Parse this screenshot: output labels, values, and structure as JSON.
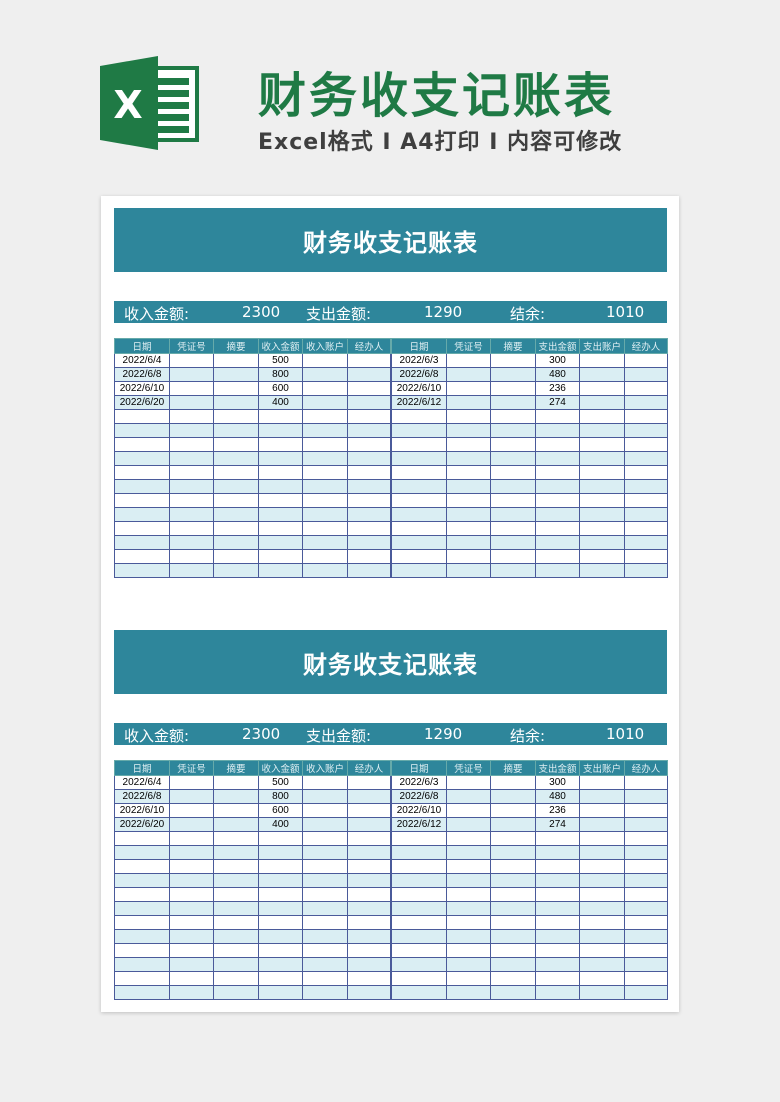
{
  "header": {
    "title": "财务收支记账表",
    "subtitle": "Excel格式 I A4打印 I 内容可修改",
    "logo_icon": "excel-logo-icon"
  },
  "colors": {
    "accent": "#2e869b",
    "title_green": "#1f7a45",
    "row_alt": "#daeef3"
  },
  "sheets": [
    {
      "title": "财务收支记账表",
      "summary": {
        "income_label": "收入金额:",
        "income": "2300",
        "expense_label": "支出金额:",
        "expense": "1290",
        "balance_label": "结余:",
        "balance": "1010"
      },
      "income": {
        "columns": [
          "日期",
          "凭证号",
          "摘要",
          "收入金额",
          "收入账户",
          "经办人"
        ],
        "rows": [
          [
            "2022/6/4",
            "",
            "",
            "500",
            "",
            ""
          ],
          [
            "2022/6/8",
            "",
            "",
            "800",
            "",
            ""
          ],
          [
            "2022/6/10",
            "",
            "",
            "600",
            "",
            ""
          ],
          [
            "2022/6/20",
            "",
            "",
            "400",
            "",
            ""
          ]
        ]
      },
      "expense": {
        "columns": [
          "日期",
          "凭证号",
          "摘要",
          "支出金额",
          "支出账户",
          "经办人"
        ],
        "rows": [
          [
            "2022/6/3",
            "",
            "",
            "300",
            "",
            ""
          ],
          [
            "2022/6/8",
            "",
            "",
            "480",
            "",
            ""
          ],
          [
            "2022/6/10",
            "",
            "",
            "236",
            "",
            ""
          ],
          [
            "2022/6/12",
            "",
            "",
            "274",
            "",
            ""
          ]
        ]
      }
    },
    {
      "title": "财务收支记账表",
      "summary": {
        "income_label": "收入金额:",
        "income": "2300",
        "expense_label": "支出金额:",
        "expense": "1290",
        "balance_label": "结余:",
        "balance": "1010"
      },
      "income": {
        "columns": [
          "日期",
          "凭证号",
          "摘要",
          "收入金额",
          "收入账户",
          "经办人"
        ],
        "rows": [
          [
            "2022/6/4",
            "",
            "",
            "500",
            "",
            ""
          ],
          [
            "2022/6/8",
            "",
            "",
            "800",
            "",
            ""
          ],
          [
            "2022/6/10",
            "",
            "",
            "600",
            "",
            ""
          ],
          [
            "2022/6/20",
            "",
            "",
            "400",
            "",
            ""
          ]
        ]
      },
      "expense": {
        "columns": [
          "日期",
          "凭证号",
          "摘要",
          "支出金额",
          "支出账户",
          "经办人"
        ],
        "rows": [
          [
            "2022/6/3",
            "",
            "",
            "300",
            "",
            ""
          ],
          [
            "2022/6/8",
            "",
            "",
            "480",
            "",
            ""
          ],
          [
            "2022/6/10",
            "",
            "",
            "236",
            "",
            ""
          ],
          [
            "2022/6/12",
            "",
            "",
            "274",
            "",
            ""
          ]
        ]
      }
    }
  ]
}
